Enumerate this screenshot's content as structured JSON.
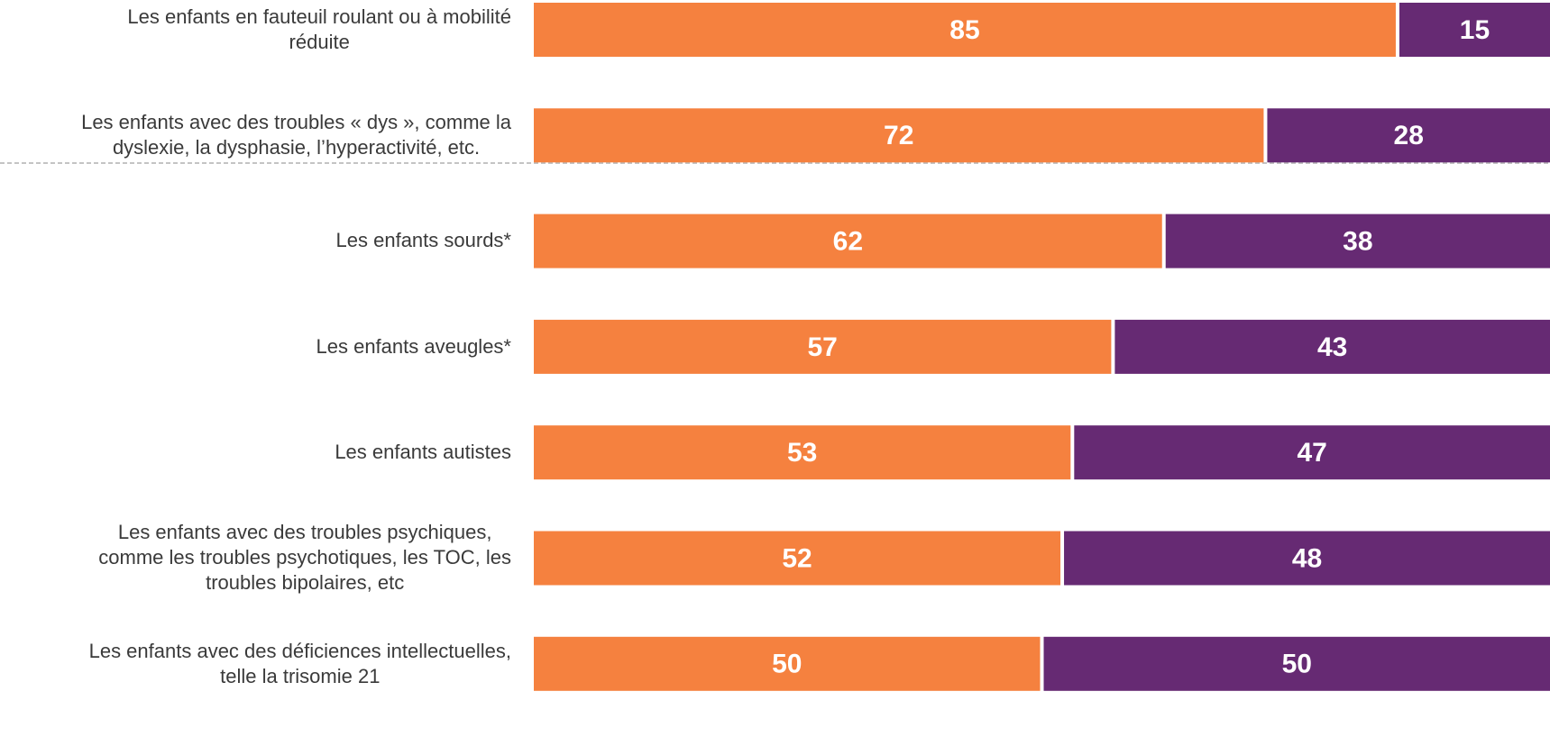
{
  "chart_data": {
    "type": "stacked_bar_horizontal",
    "categories": [
      "Les enfants en fauteuil roulant ou à mobilité\nréduite",
      "Les enfants avec des troubles « dys », comme la\ndyslexie, la dysphasie, l’hyperactivité, etc.",
      "Les enfants sourds*",
      "Les enfants aveugles*",
      "Les enfants autistes",
      "Les enfants avec des troubles psychiques,\ncomme les troubles psychotiques, les TOC, les\ntroubles bipolaires, etc",
      "Les enfants avec des déficiences intellectuelles,\ntelle la trisomie 21"
    ],
    "series": [
      {
        "color": "#F5813F",
        "values": [
          85,
          72,
          62,
          57,
          53,
          52,
          50
        ]
      },
      {
        "color": "#662A73",
        "values": [
          15,
          28,
          38,
          43,
          47,
          48,
          50
        ]
      }
    ],
    "xlim": [
      0,
      100
    ]
  }
}
